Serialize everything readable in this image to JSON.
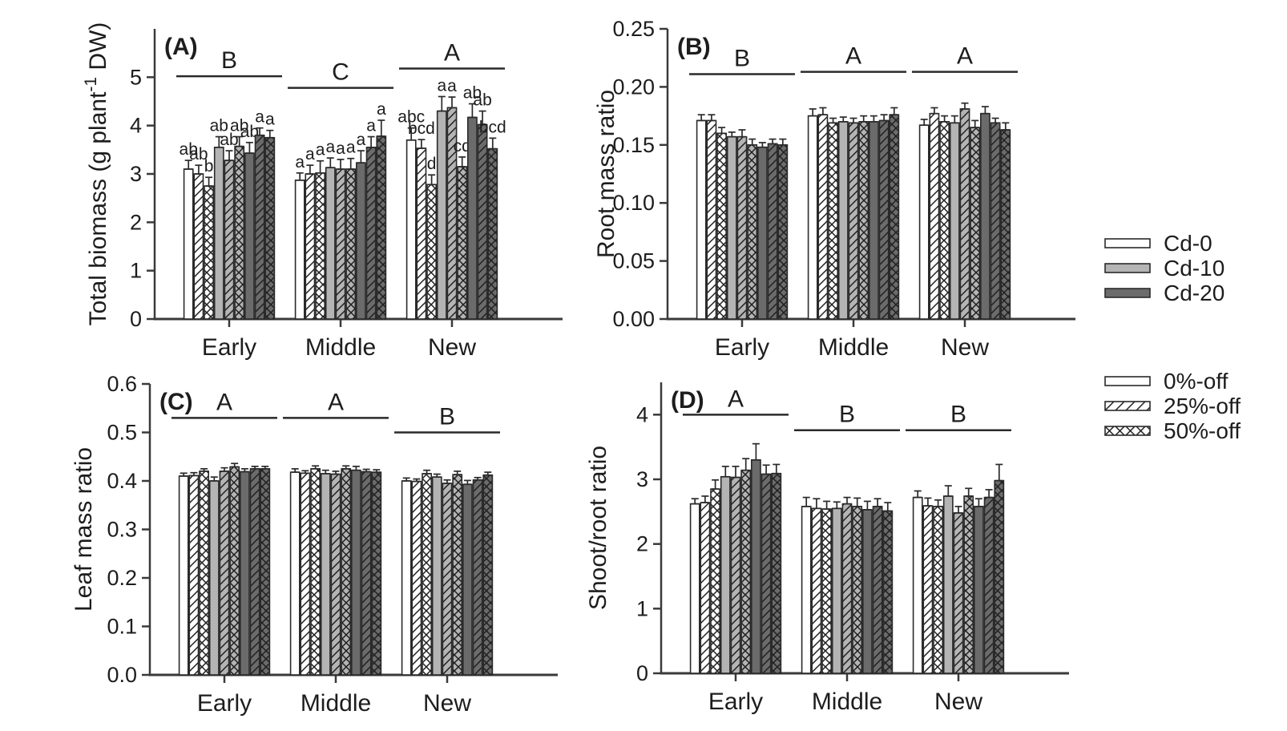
{
  "figure": {
    "panels": [
      "(A)",
      "(B)",
      "(C)",
      "(D)"
    ],
    "axis_color": "#3a3a3a",
    "text_color": "#1d1d1d"
  },
  "legend": {
    "cd": {
      "items": [
        {
          "label": "Cd-0",
          "fill": "#ffffff"
        },
        {
          "label": "Cd-10",
          "fill": "#b4b4b4"
        },
        {
          "label": "Cd-20",
          "fill": "#6b6b6b"
        }
      ]
    },
    "defoliation": {
      "items": [
        {
          "label": "0%-off",
          "hatch": "none"
        },
        {
          "label": "25%-off",
          "hatch": "diag"
        },
        {
          "label": "50%-off",
          "hatch": "cross"
        }
      ]
    }
  },
  "chart_data": [
    {
      "id": "A",
      "type": "bar",
      "panel_label": "(A)",
      "ylabel": "Total biomass (g plant⁻¹ DW)",
      "ylabel_parts": {
        "pre": "Total biomass (g plant",
        "sup": "-1",
        "post": " DW)"
      },
      "ylim": [
        0,
        6
      ],
      "yticks": [
        {
          "v": 0,
          "label": "0"
        },
        {
          "v": 1,
          "label": "1"
        },
        {
          "v": 2,
          "label": "2"
        },
        {
          "v": 3,
          "label": "3"
        },
        {
          "v": 4,
          "label": "4"
        },
        {
          "v": 5,
          "label": "5"
        }
      ],
      "categories": [
        "Early",
        "Middle",
        "New"
      ],
      "group_significance": [
        {
          "letter": "B",
          "line_y": 5.02
        },
        {
          "letter": "C",
          "line_y": 4.78
        },
        {
          "letter": "A",
          "line_y": 5.18
        }
      ],
      "series": [
        {
          "name": "Cd-0 0%-off",
          "cd": "Cd-0",
          "defoliation": "0%-off",
          "values": [
            3.1,
            2.87,
            3.7
          ],
          "errors": [
            0.18,
            0.15,
            0.25
          ]
        },
        {
          "name": "Cd-0 25%-off",
          "cd": "Cd-0",
          "defoliation": "25%-off",
          "values": [
            3.0,
            3.0,
            3.53
          ],
          "errors": [
            0.18,
            0.18,
            0.18
          ]
        },
        {
          "name": "Cd-0 50%-off",
          "cd": "Cd-0",
          "defoliation": "50%-off",
          "values": [
            2.75,
            3.02,
            2.78
          ],
          "errors": [
            0.18,
            0.25,
            0.2
          ]
        },
        {
          "name": "Cd-10 0%-off",
          "cd": "Cd-10",
          "defoliation": "0%-off",
          "values": [
            3.55,
            3.13,
            4.3
          ],
          "errors": [
            0.22,
            0.2,
            0.3
          ]
        },
        {
          "name": "Cd-10 25%-off",
          "cd": "Cd-10",
          "defoliation": "25%-off",
          "values": [
            3.28,
            3.1,
            4.37
          ],
          "errors": [
            0.2,
            0.2,
            0.22
          ]
        },
        {
          "name": "Cd-10 50%-off",
          "cd": "Cd-10",
          "defoliation": "50%-off",
          "values": [
            3.57,
            3.1,
            3.15
          ],
          "errors": [
            0.2,
            0.22,
            0.2
          ]
        },
        {
          "name": "Cd-20 0%-off",
          "cd": "Cd-20",
          "defoliation": "0%-off",
          "values": [
            3.43,
            3.23,
            4.17
          ],
          "errors": [
            0.22,
            0.25,
            0.28
          ]
        },
        {
          "name": "Cd-20 25%-off",
          "cd": "Cd-20",
          "defoliation": "25%-off",
          "values": [
            3.8,
            3.55,
            4.02
          ],
          "errors": [
            0.15,
            0.22,
            0.28
          ]
        },
        {
          "name": "Cd-20 50%-off",
          "cd": "Cd-20",
          "defoliation": "50%-off",
          "values": [
            3.75,
            3.78,
            3.52
          ],
          "errors": [
            0.15,
            0.33,
            0.22
          ]
        }
      ],
      "bar_letters": [
        [
          "ab",
          "ab",
          "b",
          "ab",
          "ab",
          "ab",
          "ab",
          "a",
          "a"
        ],
        [
          "a",
          "a",
          "a",
          "a",
          "a",
          "a",
          "a",
          "a",
          "a"
        ],
        [
          "abc",
          "bcd",
          "d",
          "a",
          "a",
          "cd",
          "ab",
          "ab",
          "bcd"
        ]
      ]
    },
    {
      "id": "B",
      "type": "bar",
      "panel_label": "(B)",
      "ylabel": "Root mass ratio",
      "ylim": [
        0,
        0.25
      ],
      "yticks": [
        {
          "v": 0.0,
          "label": "0.00"
        },
        {
          "v": 0.05,
          "label": "0.05"
        },
        {
          "v": 0.1,
          "label": "0.10"
        },
        {
          "v": 0.15,
          "label": "0.15"
        },
        {
          "v": 0.2,
          "label": "0.20"
        },
        {
          "v": 0.25,
          "label": "0.25"
        }
      ],
      "categories": [
        "Early",
        "Middle",
        "New"
      ],
      "group_significance": [
        {
          "letter": "B",
          "line_y": 0.211
        },
        {
          "letter": "A",
          "line_y": 0.213
        },
        {
          "letter": "A",
          "line_y": 0.213
        }
      ],
      "series": [
        {
          "name": "Cd-0 0%-off",
          "cd": "Cd-0",
          "defoliation": "0%-off",
          "values": [
            0.171,
            0.175,
            0.167
          ],
          "errors": [
            0.005,
            0.006,
            0.005
          ]
        },
        {
          "name": "Cd-0 25%-off",
          "cd": "Cd-0",
          "defoliation": "25%-off",
          "values": [
            0.171,
            0.176,
            0.177
          ],
          "errors": [
            0.005,
            0.006,
            0.005
          ]
        },
        {
          "name": "Cd-0 50%-off",
          "cd": "Cd-0",
          "defoliation": "50%-off",
          "values": [
            0.16,
            0.169,
            0.17
          ],
          "errors": [
            0.005,
            0.004,
            0.005
          ]
        },
        {
          "name": "Cd-10 0%-off",
          "cd": "Cd-10",
          "defoliation": "0%-off",
          "values": [
            0.157,
            0.17,
            0.169
          ],
          "errors": [
            0.004,
            0.004,
            0.006
          ]
        },
        {
          "name": "Cd-10 25%-off",
          "cd": "Cd-10",
          "defoliation": "25%-off",
          "values": [
            0.157,
            0.169,
            0.181
          ],
          "errors": [
            0.006,
            0.004,
            0.005
          ]
        },
        {
          "name": "Cd-10 50%-off",
          "cd": "Cd-10",
          "defoliation": "50%-off",
          "values": [
            0.15,
            0.17,
            0.165
          ],
          "errors": [
            0.005,
            0.005,
            0.006
          ]
        },
        {
          "name": "Cd-20 0%-off",
          "cd": "Cd-20",
          "defoliation": "0%-off",
          "values": [
            0.148,
            0.17,
            0.177
          ],
          "errors": [
            0.004,
            0.005,
            0.006
          ]
        },
        {
          "name": "Cd-20 25%-off",
          "cd": "Cd-20",
          "defoliation": "25%-off",
          "values": [
            0.151,
            0.171,
            0.169
          ],
          "errors": [
            0.004,
            0.005,
            0.004
          ]
        },
        {
          "name": "Cd-20 50%-off",
          "cd": "Cd-20",
          "defoliation": "50%-off",
          "values": [
            0.15,
            0.176,
            0.163
          ],
          "errors": [
            0.005,
            0.006,
            0.006
          ]
        }
      ],
      "bar_letters": null
    },
    {
      "id": "C",
      "type": "bar",
      "panel_label": "(C)",
      "ylabel": "Leaf mass ratio",
      "ylim": [
        0,
        0.6
      ],
      "yticks": [
        {
          "v": 0.0,
          "label": "0.0"
        },
        {
          "v": 0.1,
          "label": "0.1"
        },
        {
          "v": 0.2,
          "label": "0.2"
        },
        {
          "v": 0.3,
          "label": "0.3"
        },
        {
          "v": 0.4,
          "label": "0.4"
        },
        {
          "v": 0.5,
          "label": "0.5"
        },
        {
          "v": 0.6,
          "label": "0.6"
        }
      ],
      "categories": [
        "Early",
        "Middle",
        "New"
      ],
      "group_significance": [
        {
          "letter": "A",
          "line_y": 0.53
        },
        {
          "letter": "A",
          "line_y": 0.53
        },
        {
          "letter": "B",
          "line_y": 0.5
        }
      ],
      "series": [
        {
          "name": "Cd-0 0%-off",
          "cd": "Cd-0",
          "defoliation": "0%-off",
          "values": [
            0.41,
            0.418,
            0.4
          ],
          "errors": [
            0.006,
            0.007,
            0.006
          ]
        },
        {
          "name": "Cd-0 25%-off",
          "cd": "Cd-0",
          "defoliation": "25%-off",
          "values": [
            0.411,
            0.416,
            0.399
          ],
          "errors": [
            0.006,
            0.005,
            0.005
          ]
        },
        {
          "name": "Cd-0 50%-off",
          "cd": "Cd-0",
          "defoliation": "50%-off",
          "values": [
            0.42,
            0.425,
            0.415
          ],
          "errors": [
            0.005,
            0.006,
            0.007
          ]
        },
        {
          "name": "Cd-10 0%-off",
          "cd": "Cd-10",
          "defoliation": "0%-off",
          "values": [
            0.4,
            0.415,
            0.408
          ],
          "errors": [
            0.008,
            0.007,
            0.006
          ]
        },
        {
          "name": "Cd-10 25%-off",
          "cd": "Cd-10",
          "defoliation": "25%-off",
          "values": [
            0.42,
            0.414,
            0.395
          ],
          "errors": [
            0.007,
            0.006,
            0.007
          ]
        },
        {
          "name": "Cd-10 50%-off",
          "cd": "Cd-10",
          "defoliation": "50%-off",
          "values": [
            0.429,
            0.425,
            0.413
          ],
          "errors": [
            0.007,
            0.006,
            0.007
          ]
        },
        {
          "name": "Cd-20 0%-off",
          "cd": "Cd-20",
          "defoliation": "0%-off",
          "values": [
            0.419,
            0.422,
            0.393
          ],
          "errors": [
            0.006,
            0.008,
            0.008
          ]
        },
        {
          "name": "Cd-20 25%-off",
          "cd": "Cd-20",
          "defoliation": "25%-off",
          "values": [
            0.425,
            0.419,
            0.402
          ],
          "errors": [
            0.005,
            0.005,
            0.005
          ]
        },
        {
          "name": "Cd-20 50%-off",
          "cd": "Cd-20",
          "defoliation": "50%-off",
          "values": [
            0.425,
            0.418,
            0.412
          ],
          "errors": [
            0.005,
            0.005,
            0.006
          ]
        }
      ],
      "bar_letters": null
    },
    {
      "id": "D",
      "type": "bar",
      "panel_label": "(D)",
      "ylabel": "Shoot/root ratio",
      "ylim": [
        0,
        4.5
      ],
      "yticks": [
        {
          "v": 0,
          "label": "0"
        },
        {
          "v": 1,
          "label": "1"
        },
        {
          "v": 2,
          "label": "2"
        },
        {
          "v": 3,
          "label": "3"
        },
        {
          "v": 4,
          "label": "4"
        }
      ],
      "categories": [
        "Early",
        "Middle",
        "New"
      ],
      "group_significance": [
        {
          "letter": "A",
          "line_y": 4.0
        },
        {
          "letter": "B",
          "line_y": 3.76
        },
        {
          "letter": "B",
          "line_y": 3.76
        }
      ],
      "series": [
        {
          "name": "Cd-0 0%-off",
          "cd": "Cd-0",
          "defoliation": "0%-off",
          "values": [
            2.62,
            2.58,
            2.72
          ],
          "errors": [
            0.08,
            0.14,
            0.1
          ]
        },
        {
          "name": "Cd-0 25%-off",
          "cd": "Cd-0",
          "defoliation": "25%-off",
          "values": [
            2.64,
            2.55,
            2.59
          ],
          "errors": [
            0.1,
            0.15,
            0.12
          ]
        },
        {
          "name": "Cd-0 50%-off",
          "cd": "Cd-0",
          "defoliation": "50%-off",
          "values": [
            2.85,
            2.54,
            2.58
          ],
          "errors": [
            0.14,
            0.12,
            0.1
          ]
        },
        {
          "name": "Cd-10 0%-off",
          "cd": "Cd-10",
          "defoliation": "0%-off",
          "values": [
            3.04,
            2.55,
            2.74
          ],
          "errors": [
            0.16,
            0.1,
            0.16
          ]
        },
        {
          "name": "Cd-10 25%-off",
          "cd": "Cd-10",
          "defoliation": "25%-off",
          "values": [
            3.03,
            2.62,
            2.48
          ],
          "errors": [
            0.17,
            0.1,
            0.1
          ]
        },
        {
          "name": "Cd-10 50%-off",
          "cd": "Cd-10",
          "defoliation": "50%-off",
          "values": [
            3.14,
            2.58,
            2.74
          ],
          "errors": [
            0.18,
            0.13,
            0.12
          ]
        },
        {
          "name": "Cd-20 0%-off",
          "cd": "Cd-20",
          "defoliation": "0%-off",
          "values": [
            3.3,
            2.53,
            2.58
          ],
          "errors": [
            0.25,
            0.13,
            0.12
          ]
        },
        {
          "name": "Cd-20 25%-off",
          "cd": "Cd-20",
          "defoliation": "25%-off",
          "values": [
            3.08,
            2.58,
            2.72
          ],
          "errors": [
            0.14,
            0.12,
            0.12
          ]
        },
        {
          "name": "Cd-20 50%-off",
          "cd": "Cd-20",
          "defoliation": "50%-off",
          "values": [
            3.09,
            2.51,
            2.98
          ],
          "errors": [
            0.14,
            0.13,
            0.25
          ]
        }
      ],
      "bar_letters": null
    }
  ]
}
